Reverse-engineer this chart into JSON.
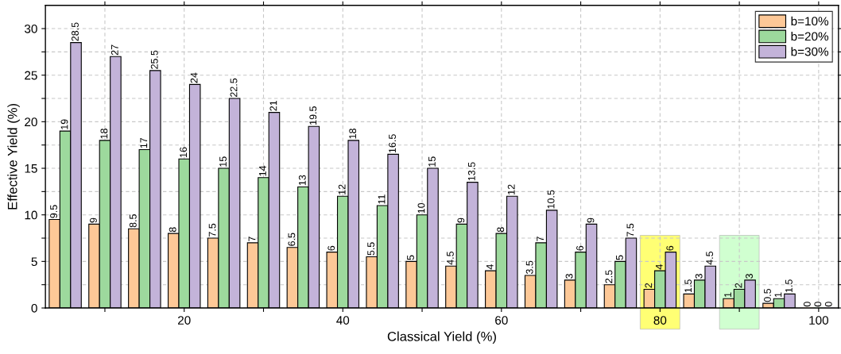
{
  "chart_data": {
    "type": "bar",
    "xlabel": "Classical Yield (%)",
    "ylabel": "Effective Yield (%)",
    "x": [
      5,
      10,
      15,
      20,
      25,
      30,
      35,
      40,
      45,
      50,
      55,
      60,
      65,
      70,
      75,
      80,
      85,
      90,
      95,
      100
    ],
    "series": [
      {
        "name": "b=10%",
        "color": "#fdc897",
        "values": [
          9.5,
          9,
          8.5,
          8,
          7.5,
          7,
          6.5,
          6,
          5.5,
          5,
          4.5,
          4,
          3.5,
          3,
          2.5,
          2,
          1.5,
          1,
          0.5,
          0
        ]
      },
      {
        "name": "b=20%",
        "color": "#9dd99d",
        "values": [
          19,
          18,
          17,
          16,
          15,
          14,
          13,
          12,
          11,
          10,
          9,
          8,
          7,
          6,
          5,
          4,
          3,
          2,
          1,
          0
        ]
      },
      {
        "name": "b=30%",
        "color": "#c3b3d9",
        "values": [
          28.5,
          27,
          25.5,
          24,
          22.5,
          21,
          19.5,
          18,
          16.5,
          15,
          13.5,
          12,
          10.5,
          9,
          7.5,
          6,
          4.5,
          3,
          1.5,
          0
        ]
      }
    ],
    "xlim": [
      2.5,
      102.5
    ],
    "ylim": [
      0,
      32.5
    ],
    "xticks": [
      {
        "value": 10,
        "label": null
      },
      20,
      {
        "value": 30,
        "label": null
      },
      40,
      {
        "value": 50,
        "label": null
      },
      60,
      {
        "value": 70,
        "label": null
      },
      80,
      {
        "value": 90,
        "label": null
      },
      100
    ],
    "yticks": [
      0,
      {
        "value": 2.5,
        "label": null
      },
      5,
      {
        "value": 7.5,
        "label": null
      },
      10,
      {
        "value": 12.5,
        "label": null
      },
      15,
      {
        "value": 17.5,
        "label": null
      },
      20,
      {
        "value": 22.5,
        "label": null
      },
      25,
      {
        "value": 27.5,
        "label": null
      },
      30
    ],
    "bands": [
      {
        "axis": "x",
        "from": 77.5,
        "to": 82.5,
        "color": "#ffff66"
      },
      {
        "axis": "x",
        "from": 87.5,
        "to": 92.5,
        "color": "#ccffcc"
      }
    ],
    "data_labels": true,
    "grid": true,
    "legend": "top right"
  }
}
